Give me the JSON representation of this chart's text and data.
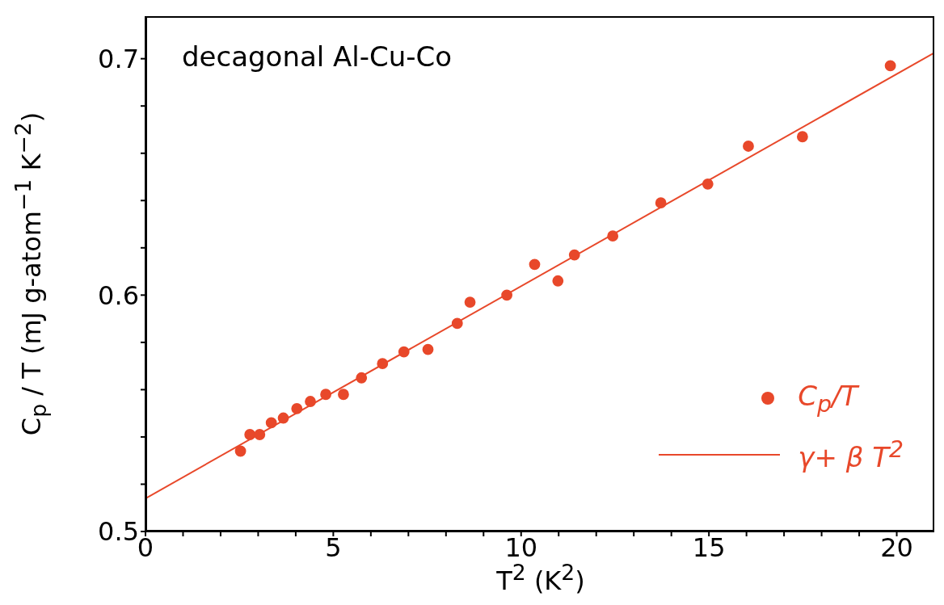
{
  "chart_data": {
    "type": "scatter",
    "xlabel": "T$^{2}$ (K$^{2}$)",
    "ylabel": "C$_{p}$ / T (mJ g-atom$^{−1}$ K$^{−2}$)",
    "annotations": [
      "decagonal Al-Cu-Co"
    ],
    "xlim": [
      0,
      21
    ],
    "ylim": [
      0.5,
      0.718
    ],
    "xticks": [
      0,
      {
        "value": 1,
        "label": null
      },
      {
        "value": 2,
        "label": null
      },
      {
        "value": 3,
        "label": null
      },
      {
        "value": 4,
        "label": null
      },
      5,
      {
        "value": 6,
        "label": null
      },
      {
        "value": 7,
        "label": null
      },
      {
        "value": 8,
        "label": null
      },
      {
        "value": 9,
        "label": null
      },
      10,
      {
        "value": 11,
        "label": null
      },
      {
        "value": 12,
        "label": null
      },
      {
        "value": 13,
        "label": null
      },
      {
        "value": 14,
        "label": null
      },
      15,
      {
        "value": 16,
        "label": null
      },
      {
        "value": 17,
        "label": null
      },
      {
        "value": 18,
        "label": null
      },
      {
        "value": 19,
        "label": null
      },
      20
    ],
    "yticks": [
      0.5,
      {
        "value": 0.52,
        "label": null
      },
      {
        "value": 0.54,
        "label": null
      },
      {
        "value": 0.56,
        "label": null
      },
      {
        "value": 0.58,
        "label": null
      },
      0.6,
      {
        "value": 0.62,
        "label": null
      },
      {
        "value": 0.64,
        "label": null
      },
      {
        "value": 0.66,
        "label": null
      },
      {
        "value": 0.68,
        "label": null
      },
      0.7
    ],
    "legend": "bottom right",
    "series": [
      {
        "name": "C$_{p}$/T",
        "marker": "circle",
        "color": "#e8482a",
        "x": [
          2.53,
          2.78,
          3.04,
          3.35,
          3.67,
          4.03,
          4.39,
          4.8,
          5.27,
          5.75,
          6.31,
          6.88,
          7.52,
          8.3,
          8.64,
          9.62,
          10.36,
          10.98,
          11.42,
          12.44,
          13.72,
          14.97,
          16.05,
          17.49,
          19.83
        ],
        "values": [
          0.534,
          0.541,
          0.541,
          0.546,
          0.548,
          0.552,
          0.555,
          0.558,
          0.558,
          0.565,
          0.571,
          0.576,
          0.577,
          0.588,
          0.597,
          0.6,
          0.613,
          0.606,
          0.617,
          0.625,
          0.639,
          0.647,
          0.663,
          0.667,
          0.697
        ]
      },
      {
        "name": "γ+ β T$^{2}$",
        "type": "line",
        "marker": "none",
        "line_style": "solid",
        "color": "#e8482a",
        "x": [
          0,
          21
        ],
        "values": [
          0.514,
          0.7025
        ]
      }
    ]
  }
}
